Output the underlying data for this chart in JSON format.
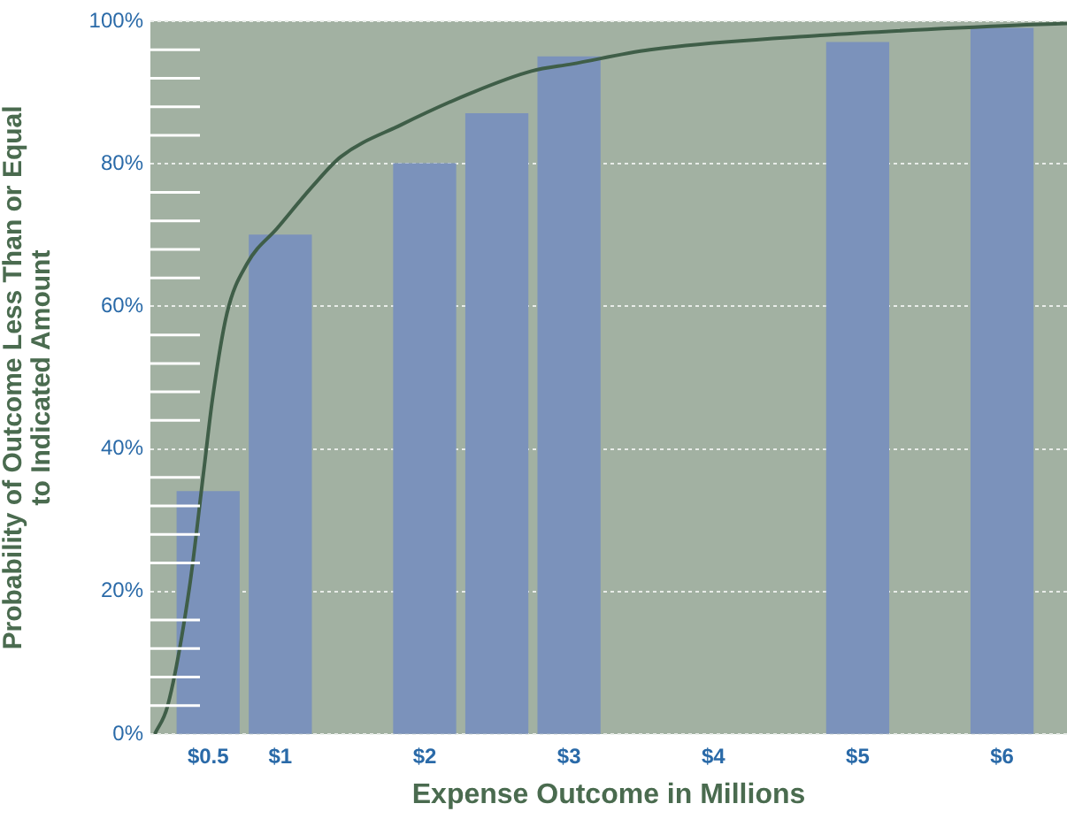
{
  "chart_data": {
    "type": "bar",
    "xlabel": "Expense Outcome in Millions",
    "ylabel": "Probability of Outcome Less Than or Equal\nto Indicated Amount",
    "xlim": [
      0.1,
      6.45
    ],
    "xticks": [
      {
        "value": 0.5,
        "label": "$0.5"
      },
      {
        "value": 1,
        "label": "$1"
      },
      {
        "value": 2,
        "label": "$2"
      },
      {
        "value": 3,
        "label": "$3"
      },
      {
        "value": 4,
        "label": "$4"
      },
      {
        "value": 5,
        "label": "$5"
      },
      {
        "value": 6,
        "label": "$6"
      }
    ],
    "ylim": [
      0,
      100
    ],
    "yticks": [
      {
        "value": 0,
        "label": "0%"
      },
      {
        "value": 20,
        "label": "20%"
      },
      {
        "value": 40,
        "label": "40%"
      },
      {
        "value": 60,
        "label": "60%"
      },
      {
        "value": 80,
        "label": "80%"
      },
      {
        "value": 100,
        "label": "100%"
      }
    ],
    "grid": "y",
    "marker": "none",
    "line_style": "solid",
    "legend": false,
    "series": [
      {
        "color": "#7b92bb",
        "x": [
          0.5,
          1,
          2,
          2.5,
          3,
          5,
          6
        ],
        "values": [
          34,
          70,
          80,
          87,
          95,
          97,
          99
        ]
      },
      {
        "type": "line",
        "color": "#3f5e48",
        "x": [
          0.13,
          0.22,
          0.37,
          0.47,
          0.53,
          0.63,
          0.77,
          0.98,
          1.23,
          1.42,
          1.84,
          2.33,
          2.74,
          3.02,
          3.56,
          4.74,
          6.17,
          6.45
        ],
        "values": [
          0,
          4,
          20.5,
          37,
          47,
          59,
          66,
          71,
          77,
          81,
          85.5,
          90,
          93,
          94,
          96,
          98,
          99.5,
          99.7
        ]
      }
    ]
  }
}
